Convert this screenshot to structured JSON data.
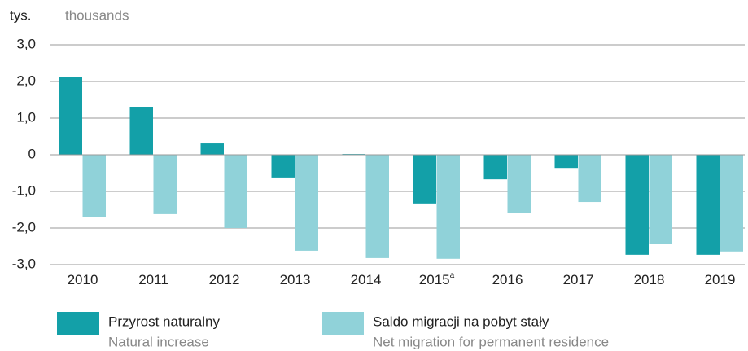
{
  "chart_data": {
    "type": "bar",
    "y_unit": "tys.",
    "y_unit_en": "thousands",
    "categories": [
      "2010",
      "2011",
      "2012",
      "2013",
      "2014",
      "2015",
      "2016",
      "2017",
      "2018",
      "2019"
    ],
    "category_notes": [
      null,
      null,
      null,
      null,
      null,
      "a",
      null,
      null,
      null,
      null
    ],
    "series": [
      {
        "name": "Przyrost naturalny",
        "name_en": "Natural increase",
        "color": "#13a0a8",
        "values": [
          2.13,
          1.29,
          0.31,
          -0.62,
          0.02,
          -1.33,
          -0.67,
          -0.36,
          -2.73,
          -2.73
        ]
      },
      {
        "name": "Saldo migracji na pobyt stały",
        "name_en": "Net migration for permanent residence",
        "color": "#90d2d9",
        "values": [
          -1.69,
          -1.62,
          -2.0,
          -2.62,
          -2.82,
          -2.84,
          -1.6,
          -1.29,
          -2.44,
          -2.64
        ]
      }
    ],
    "ylim": [
      -3,
      3
    ],
    "yticks": [
      {
        "value": 3,
        "label": "3,0"
      },
      {
        "value": 2,
        "label": "2,0"
      },
      {
        "value": 1,
        "label": "1,0"
      },
      0,
      {
        "value": -1,
        "label": "-1,0"
      },
      {
        "value": -2,
        "label": "-2,0"
      },
      {
        "value": -3,
        "label": "-3,0"
      }
    ],
    "grid": true
  }
}
